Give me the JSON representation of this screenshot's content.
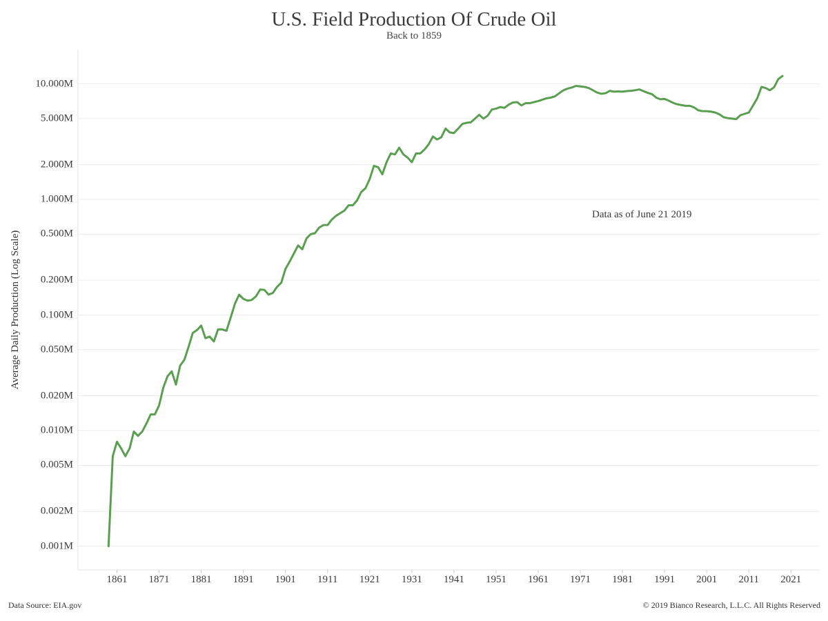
{
  "chart_data": {
    "type": "line",
    "title": "U.S. Field Production Of Crude Oil",
    "subtitle": "Back to 1859",
    "xlabel": "",
    "ylabel": "Average Daily Production (Log Scale)",
    "y_scale": "log",
    "ylim": [
      0.001,
      12.0
    ],
    "xlim": [
      1857.5,
      2023
    ],
    "grid": "horizontal",
    "annotation": "Data as of June 21 2019",
    "line_color": "#5a9e50",
    "y_ticks": [
      {
        "value": 10.0,
        "label": "10.000M"
      },
      {
        "value": 5.0,
        "label": "5.000M"
      },
      {
        "value": 2.0,
        "label": "2.000M"
      },
      {
        "value": 1.0,
        "label": "1.000M"
      },
      {
        "value": 0.5,
        "label": "0.500M"
      },
      {
        "value": 0.2,
        "label": "0.200M"
      },
      {
        "value": 0.1,
        "label": "0.100M"
      },
      {
        "value": 0.05,
        "label": "0.050M"
      },
      {
        "value": 0.02,
        "label": "0.020M"
      },
      {
        "value": 0.01,
        "label": "0.010M"
      },
      {
        "value": 0.005,
        "label": "0.005M"
      },
      {
        "value": 0.002,
        "label": "0.002M"
      },
      {
        "value": 0.001,
        "label": "0.001M"
      }
    ],
    "x_ticks": [
      1861,
      1871,
      1881,
      1891,
      1901,
      1911,
      1921,
      1931,
      1941,
      1951,
      1961,
      1971,
      1981,
      1991,
      2001,
      2011,
      2021
    ],
    "series": [
      {
        "x": [
          1859,
          1860,
          1861,
          1862,
          1863,
          1864,
          1865,
          1866,
          1867,
          1868,
          1869,
          1870,
          1871,
          1872,
          1873,
          1874,
          1875,
          1876,
          1877,
          1878,
          1879,
          1880,
          1881,
          1882,
          1883,
          1884,
          1885,
          1886,
          1887,
          1888,
          1889,
          1890,
          1891,
          1892,
          1893,
          1894,
          1895,
          1896,
          1897,
          1898,
          1899,
          1900,
          1901,
          1902,
          1903,
          1904,
          1905,
          1906,
          1907,
          1908,
          1909,
          1910,
          1911,
          1912,
          1913,
          1914,
          1915,
          1916,
          1917,
          1918,
          1919,
          1920,
          1921,
          1922,
          1923,
          1924,
          1925,
          1926,
          1927,
          1928,
          1929,
          1930,
          1931,
          1932,
          1933,
          1934,
          1935,
          1936,
          1937,
          1938,
          1939,
          1940,
          1941,
          1942,
          1943,
          1944,
          1945,
          1946,
          1947,
          1948,
          1949,
          1950,
          1951,
          1952,
          1953,
          1954,
          1955,
          1956,
          1957,
          1958,
          1959,
          1960,
          1961,
          1962,
          1963,
          1964,
          1965,
          1966,
          1967,
          1968,
          1969,
          1970,
          1971,
          1972,
          1973,
          1974,
          1975,
          1976,
          1977,
          1978,
          1979,
          1980,
          1981,
          1982,
          1983,
          1984,
          1985,
          1986,
          1987,
          1988,
          1989,
          1990,
          1991,
          1992,
          1993,
          1994,
          1995,
          1996,
          1997,
          1998,
          1999,
          2000,
          2001,
          2002,
          2003,
          2004,
          2005,
          2006,
          2007,
          2008,
          2009,
          2010,
          2011,
          2012,
          2013,
          2014,
          2015,
          2016,
          2017,
          2018,
          2019
        ],
        "values": [
          0.001,
          0.006,
          0.008,
          0.007,
          0.006,
          0.007,
          0.0098,
          0.009,
          0.0098,
          0.0115,
          0.0138,
          0.0138,
          0.0165,
          0.0235,
          0.0295,
          0.0325,
          0.025,
          0.0365,
          0.041,
          0.053,
          0.07,
          0.074,
          0.081,
          0.063,
          0.065,
          0.059,
          0.075,
          0.075,
          0.073,
          0.095,
          0.125,
          0.15,
          0.138,
          0.133,
          0.135,
          0.145,
          0.166,
          0.165,
          0.15,
          0.155,
          0.175,
          0.19,
          0.25,
          0.29,
          0.34,
          0.4,
          0.37,
          0.46,
          0.5,
          0.51,
          0.57,
          0.6,
          0.6,
          0.67,
          0.72,
          0.76,
          0.8,
          0.89,
          0.89,
          0.98,
          1.16,
          1.25,
          1.5,
          1.95,
          1.9,
          1.65,
          2.1,
          2.5,
          2.45,
          2.8,
          2.45,
          2.3,
          2.1,
          2.5,
          2.5,
          2.7,
          3.0,
          3.5,
          3.3,
          3.45,
          4.1,
          3.8,
          3.75,
          4.1,
          4.5,
          4.6,
          4.65,
          5.0,
          5.4,
          5.0,
          5.3,
          6.0,
          6.1,
          6.3,
          6.2,
          6.6,
          6.9,
          6.95,
          6.5,
          6.8,
          6.8,
          6.95,
          7.1,
          7.3,
          7.5,
          7.6,
          7.8,
          8.3,
          8.8,
          9.1,
          9.3,
          9.6,
          9.5,
          9.4,
          9.2,
          8.8,
          8.4,
          8.2,
          8.3,
          8.7,
          8.55,
          8.6,
          8.55,
          8.65,
          8.7,
          8.8,
          8.95,
          8.65,
          8.35,
          8.15,
          7.6,
          7.35,
          7.4,
          7.15,
          6.85,
          6.65,
          6.55,
          6.45,
          6.45,
          6.25,
          5.9,
          5.8,
          5.8,
          5.75,
          5.65,
          5.45,
          5.15,
          5.05,
          5.0,
          4.95,
          5.35,
          5.5,
          5.65,
          6.5,
          7.5,
          9.4,
          9.2,
          8.8,
          9.35,
          11.0,
          11.7
        ]
      }
    ]
  },
  "footer": {
    "source": "Data Source: EIA.gov",
    "copyright": "© 2019 Bianco Research, L.L.C. All Rights Reserved"
  }
}
